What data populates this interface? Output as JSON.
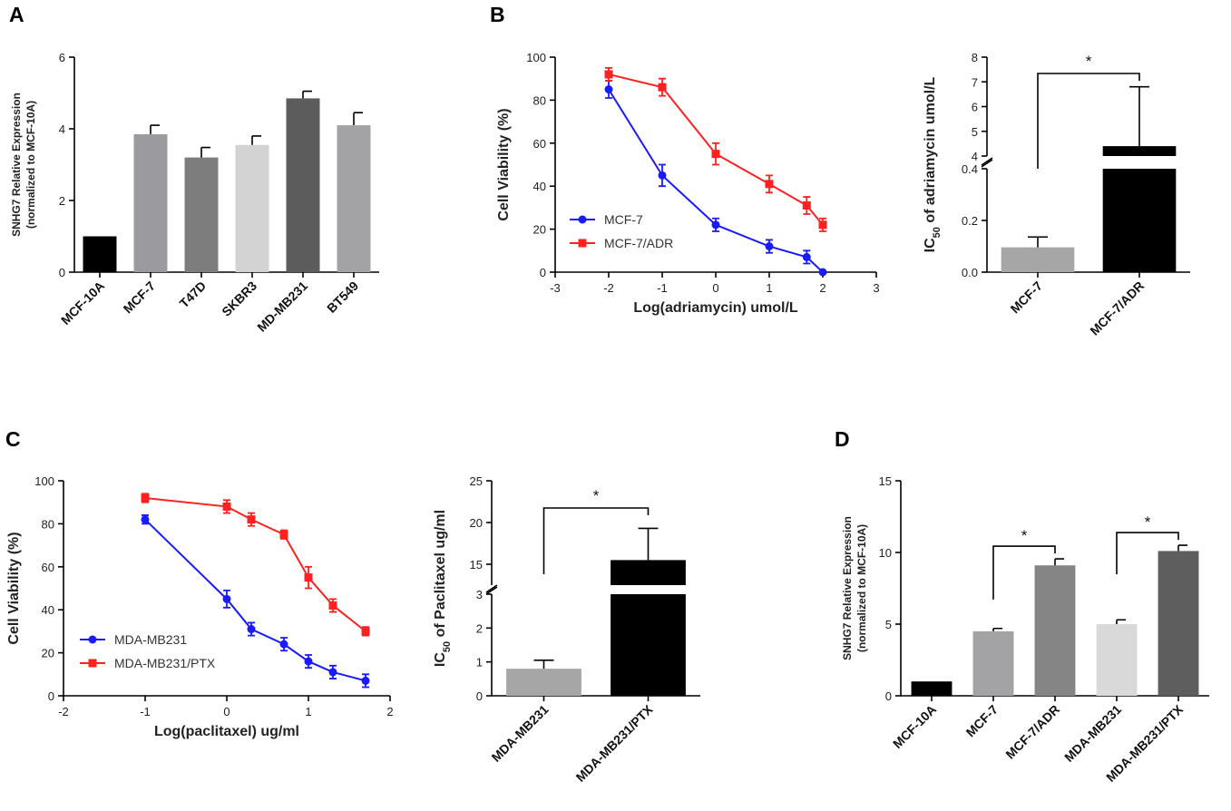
{
  "panels": {
    "A": "A",
    "B": "B",
    "C": "C",
    "D": "D"
  },
  "chart_data": [
    {
      "id": "A",
      "type": "bar",
      "title": "",
      "xlabel": "",
      "ylabel": "SNHG7 Relative  Expression",
      "ylabel2": "(normalized to  MCF-10A)",
      "categories": [
        "MCF-10A",
        "MCF-7",
        "T47D",
        "SKBR3",
        "MD-MB231",
        "BT549"
      ],
      "values": [
        1.0,
        3.85,
        3.2,
        3.55,
        4.85,
        4.1
      ],
      "errors": [
        0,
        0.25,
        0.28,
        0.25,
        0.2,
        0.35
      ],
      "colors": [
        "#000000",
        "#9b9b9f",
        "#7d7d7d",
        "#d3d3d3",
        "#5c5c5c",
        "#a3a3a6"
      ],
      "ylim": [
        0,
        6
      ],
      "yticks": [
        "0",
        "2",
        "4",
        "6"
      ]
    },
    {
      "id": "B-line",
      "type": "line",
      "xlabel": "Log(adriamycin)  umol/L",
      "ylabel": "Cell Viability (%)",
      "xlim": [
        -3,
        3
      ],
      "ylim": [
        0,
        100
      ],
      "xticks": [
        "-3",
        "-2",
        "-1",
        "0",
        "1",
        "2",
        "3"
      ],
      "yticks": [
        "0",
        "20",
        "40",
        "60",
        "80",
        "100"
      ],
      "legend_position": "bottom-left",
      "series": [
        {
          "name": "MCF-7",
          "color": "#1a1aff",
          "marker": "circle",
          "x": [
            -2,
            -1,
            0,
            1,
            1.7,
            2
          ],
          "y": [
            85,
            45,
            22,
            12,
            7,
            0
          ],
          "err": [
            4,
            5,
            3,
            3,
            3,
            0
          ]
        },
        {
          "name": "MCF-7/ADR",
          "color": "#ff2020",
          "marker": "square",
          "x": [
            -2,
            -1,
            0,
            1,
            1.7,
            2
          ],
          "y": [
            92,
            86,
            55,
            41,
            31,
            22
          ],
          "err": [
            3,
            4,
            5,
            4,
            4,
            3
          ]
        }
      ]
    },
    {
      "id": "B-bar",
      "type": "bar",
      "ylabel_prefix": "IC",
      "ylabel_sub": "50",
      "ylabel_rest": " of adriamycin  umol/L",
      "categories": [
        "MCF-7",
        "MCF-7/ADR"
      ],
      "values": [
        0.12,
        4.4
      ],
      "errors": [
        0.05,
        2.4
      ],
      "colors": [
        "#a6a6a6",
        "#000000"
      ],
      "lower_segment": {
        "ylim": [
          0,
          0.5
        ],
        "yticks": [
          "0.0",
          "0.2",
          "0.4"
        ]
      },
      "upper_segment": {
        "ylim": [
          4,
          8
        ],
        "yticks": [
          "4",
          "5",
          "6",
          "7",
          "8"
        ]
      },
      "significance": "*"
    },
    {
      "id": "C-line",
      "type": "line",
      "xlabel": "Log(paclitaxel) ug/ml",
      "ylabel": "Cell Viability (%)",
      "xlim": [
        -2,
        2
      ],
      "ylim": [
        0,
        100
      ],
      "xticks": [
        "-2",
        "-1",
        "0",
        "1",
        "2"
      ],
      "yticks": [
        "0",
        "20",
        "40",
        "60",
        "80",
        "100"
      ],
      "legend_position": "bottom-left",
      "series": [
        {
          "name": "MDA-MB231",
          "color": "#1a1aff",
          "marker": "circle",
          "x": [
            -1,
            0,
            0.3,
            0.7,
            1,
            1.3,
            1.7
          ],
          "y": [
            82,
            45,
            31,
            24,
            16,
            11,
            7
          ],
          "err": [
            2,
            4,
            3,
            3,
            3,
            3,
            3
          ]
        },
        {
          "name": "MDA-MB231/PTX",
          "color": "#ff2020",
          "marker": "square",
          "x": [
            -1,
            0,
            0.3,
            0.7,
            1,
            1.3,
            1.7
          ],
          "y": [
            92,
            88,
            82,
            75,
            55,
            42,
            30
          ],
          "err": [
            2,
            3,
            3,
            2,
            5,
            3,
            2
          ]
        }
      ]
    },
    {
      "id": "C-bar",
      "type": "bar",
      "ylabel_prefix": "IC",
      "ylabel_sub": "50",
      "ylabel_rest": " of Paclitaxel ug/ml",
      "categories": [
        "MDA-MB231",
        "MDA-MB231/PTX"
      ],
      "values": [
        0.8,
        15.5
      ],
      "errors": [
        0.25,
        3.8
      ],
      "colors": [
        "#a6a6a6",
        "#000000"
      ],
      "lower_segment": {
        "ylim": [
          0,
          3
        ],
        "yticks": [
          "0",
          "1",
          "2",
          "3"
        ]
      },
      "upper_segment": {
        "ylim": [
          12.5,
          25
        ],
        "yticks": [
          "15",
          "20",
          "25"
        ]
      },
      "significance": "*"
    },
    {
      "id": "D",
      "type": "bar",
      "ylabel": "SNHG7 Relative  Expression",
      "ylabel2": "(normalized to  MCF-10A)",
      "categories": [
        "MCF-10A",
        "MCF-7",
        "MCF-7/ADR",
        "MDA-MB231",
        "MDA-MB231/PTX"
      ],
      "values": [
        1.0,
        4.5,
        9.1,
        5.0,
        10.1
      ],
      "errors": [
        0,
        0.2,
        0.45,
        0.3,
        0.4
      ],
      "colors": [
        "#000000",
        "#a3a3a6",
        "#858585",
        "#d9d9d9",
        "#5e5e5e"
      ],
      "ylim": [
        0,
        15
      ],
      "yticks": [
        "0",
        "5",
        "10",
        "15"
      ],
      "significance": [
        "*",
        "*"
      ]
    }
  ]
}
